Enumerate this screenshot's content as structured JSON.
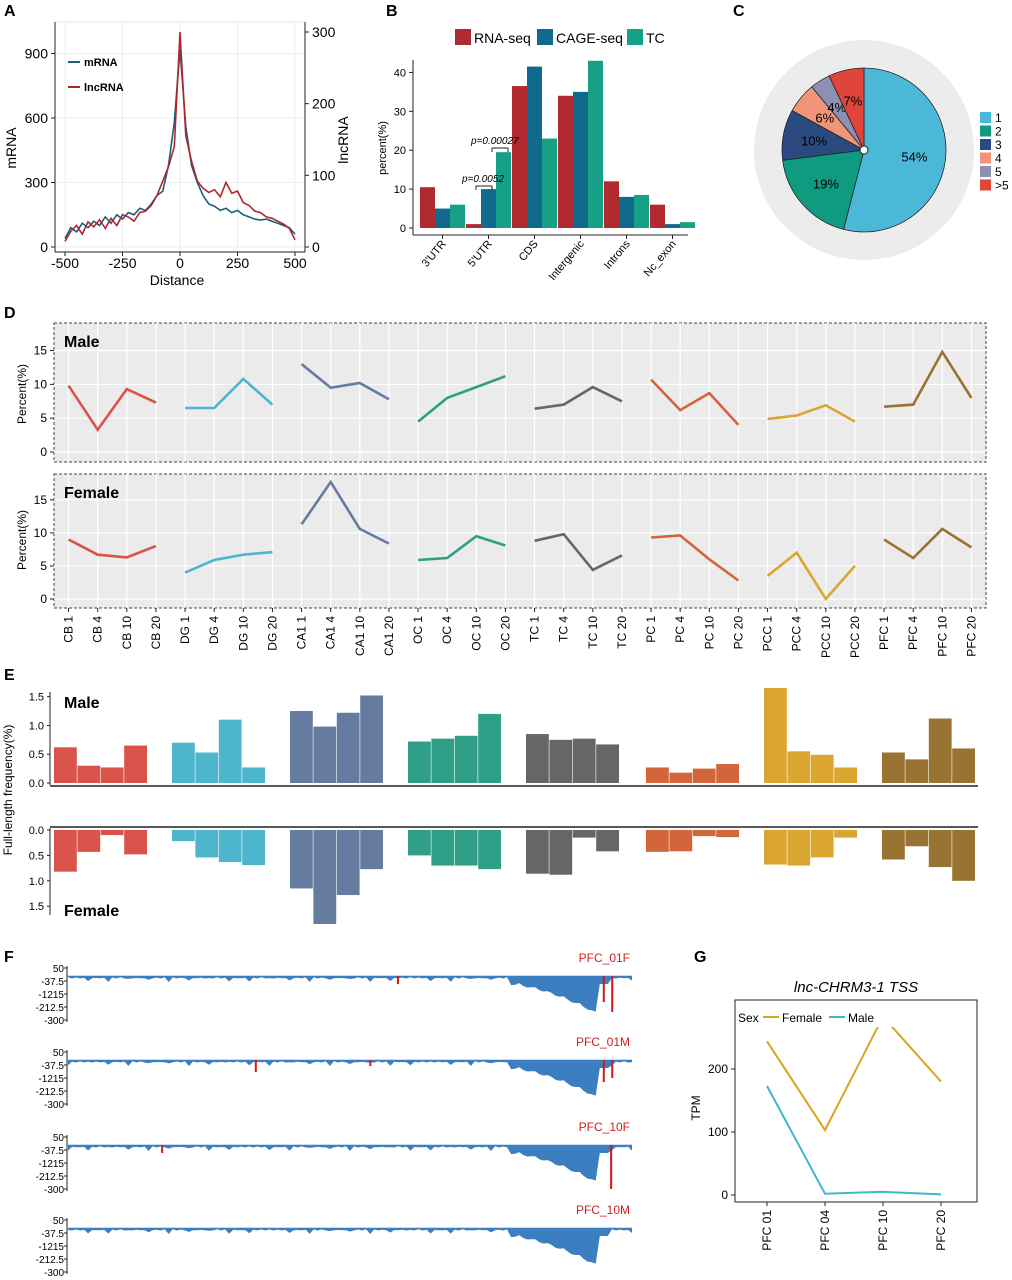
{
  "panel_letters": [
    "A",
    "B",
    "C",
    "D",
    "E",
    "F",
    "G"
  ],
  "tissues": [
    "CB",
    "DG",
    "CA1",
    "OC",
    "TC",
    "PC",
    "PCC",
    "PFC"
  ],
  "ages": [
    "1",
    "4",
    "10",
    "20"
  ],
  "tissue_colors": [
    "#d9534a",
    "#4db6cc",
    "#657ba0",
    "#2f9e86",
    "#666666",
    "#d2663a",
    "#dba532",
    "#987331"
  ],
  "tracks": [
    {
      "label": "PFC_01F",
      "blips": [
        [
          "0.585",
          8
        ],
        [
          "0.95",
          26
        ],
        [
          "0.965",
          36
        ]
      ]
    },
    {
      "label": "PFC_01M",
      "blips": [
        [
          "0.333",
          12
        ],
        [
          "0.536",
          6
        ],
        [
          "0.95",
          22
        ],
        [
          "0.965",
          18
        ]
      ]
    },
    {
      "label": "PFC_10F",
      "blips": [
        [
          "0.167",
          8
        ],
        [
          "0.963",
          44
        ]
      ]
    },
    {
      "label": "PFC_10M",
      "blips": []
    }
  ],
  "track_ticks": [
    "50",
    "-37.5",
    "-1215",
    "-212.5",
    "-300"
  ],
  "chart_data": [
    {
      "panel": "A",
      "type": "line",
      "xlabel": "Distance",
      "ylabel": "mRNA",
      "y2label": "lncRNA",
      "xlim": [
        -500,
        500
      ],
      "ylim": [
        0,
        1000
      ],
      "y2lim": [
        0,
        300
      ],
      "xticks": [
        "-500",
        "-250",
        "0",
        "250",
        "500"
      ],
      "yticks": [
        "0",
        "300",
        "600",
        "900"
      ],
      "y2ticks": [
        "0",
        "100",
        "200",
        "300"
      ],
      "x": [
        -500,
        -475,
        -450,
        -425,
        -400,
        -375,
        -350,
        -325,
        -300,
        -275,
        -250,
        -225,
        -200,
        -175,
        -150,
        -125,
        -100,
        -75,
        -50,
        -25,
        0,
        25,
        50,
        75,
        100,
        125,
        150,
        175,
        200,
        225,
        250,
        275,
        300,
        325,
        350,
        375,
        400,
        425,
        450,
        475,
        500
      ],
      "series": [
        {
          "name": "mRNA",
          "axis": "left",
          "color": "#1d5f7a",
          "values": [
            40,
            90,
            70,
            110,
            90,
            120,
            100,
            140,
            110,
            150,
            130,
            160,
            150,
            180,
            170,
            200,
            240,
            260,
            380,
            580,
            920,
            560,
            380,
            300,
            240,
            200,
            190,
            170,
            180,
            160,
            170,
            150,
            140,
            130,
            125,
            130,
            120,
            110,
            100,
            90,
            60
          ]
        },
        {
          "name": "lncRNA",
          "axis": "right",
          "color": "#b0262e",
          "values": [
            8,
            22,
            30,
            18,
            35,
            28,
            38,
            26,
            40,
            30,
            45,
            42,
            36,
            48,
            50,
            58,
            72,
            92,
            112,
            140,
            300,
            155,
            120,
            92,
            82,
            76,
            80,
            70,
            90,
            75,
            78,
            62,
            58,
            50,
            48,
            42,
            40,
            36,
            32,
            26,
            10
          ]
        }
      ]
    },
    {
      "panel": "B",
      "type": "bar",
      "ylabel": "percent(%)",
      "ylim": [
        0,
        45
      ],
      "yticks": [
        "0",
        "10",
        "20",
        "30",
        "40"
      ],
      "categories": [
        "3'UTR",
        "5'UTR",
        "CDS",
        "Intergenic",
        "Introns",
        "Nc_exon"
      ],
      "series": [
        {
          "name": "RNA-seq",
          "color": "#b02a30",
          "values": [
            10.5,
            1.0,
            36.5,
            34.0,
            12.0,
            6.0
          ]
        },
        {
          "name": "CAGE-seq",
          "color": "#106a8d",
          "values": [
            5.0,
            10.0,
            41.5,
            35.0,
            8.0,
            1.0
          ]
        },
        {
          "name": "TC",
          "color": "#16a085",
          "values": [
            6.0,
            19.5,
            23.0,
            43.0,
            8.5,
            1.5
          ]
        }
      ],
      "annotations": [
        "p=0.0052",
        "p=0.00027"
      ]
    },
    {
      "panel": "C",
      "type": "pie",
      "categories": [
        "1",
        "2",
        "3",
        "4",
        "5",
        ">5"
      ],
      "values": [
        54,
        19,
        10,
        6,
        4,
        7
      ],
      "labels": [
        "54%",
        "19%",
        "10%",
        "6%",
        "4%",
        "7%"
      ],
      "colors": [
        "#4bb8d8",
        "#0f9b7f",
        "#2b4a80",
        "#f0957a",
        "#8c90b3",
        "#e0453a"
      ]
    },
    {
      "panel": "D",
      "type": "line",
      "ylabel": "Percent(%)",
      "ylim": [
        0,
        18
      ],
      "yticks": [
        "0",
        "5",
        "10",
        "15"
      ],
      "categories": [
        "CB 1",
        "CB 4",
        "CB 10",
        "CB 20",
        "DG 1",
        "DG 4",
        "DG 10",
        "DG 20",
        "CA1 1",
        "CA1 4",
        "CA1 10",
        "CA1 20",
        "OC 1",
        "OC 4",
        "OC 10",
        "OC 20",
        "TC 1",
        "TC 4",
        "TC 10",
        "TC 20",
        "PC 1",
        "PC 4",
        "PC 10",
        "PC 20",
        "PCC 1",
        "PCC 4",
        "PCC 10",
        "PCC 20",
        "PFC 1",
        "PFC 4",
        "PFC 10",
        "PFC 20"
      ],
      "series": [
        {
          "name": "Male",
          "values": [
            9.8,
            3.3,
            9.3,
            7.3,
            6.5,
            6.5,
            10.8,
            7.0,
            13.0,
            9.5,
            10.2,
            7.8,
            4.5,
            8.0,
            9.6,
            11.2,
            6.4,
            7.0,
            9.6,
            7.5,
            10.7,
            6.2,
            8.7,
            4.0,
            4.9,
            5.4,
            6.9,
            4.5,
            6.7,
            7.0,
            14.8,
            8.0
          ]
        },
        {
          "name": "Female",
          "values": [
            9.0,
            6.7,
            6.3,
            8.0,
            4.0,
            5.9,
            6.7,
            7.1,
            11.3,
            17.7,
            10.6,
            8.4,
            5.9,
            6.2,
            9.5,
            8.1,
            8.8,
            9.8,
            4.4,
            6.6,
            9.3,
            9.6,
            6.0,
            2.8,
            3.5,
            7.0,
            0.0,
            5.0,
            9.0,
            6.2,
            10.6,
            7.8
          ]
        }
      ]
    },
    {
      "panel": "E",
      "type": "bar",
      "ylabel": "Full-length frequency(%)",
      "yticks": [
        "0.0",
        "0.5",
        "1.0",
        "1.5"
      ],
      "male_yticks": [
        "0.0",
        "0.5",
        "1.0",
        "1.5"
      ],
      "female_yticks": [
        "0.0",
        "0.5",
        "1.0",
        "1.5"
      ],
      "female_zero_label": "0.0",
      "categories": [
        "CB 1",
        "CB 4",
        "CB 10",
        "CB 20",
        "DG 1",
        "DG 4",
        "DG 10",
        "DG 20",
        "CA1 1",
        "CA1 4",
        "CA1 10",
        "CA1 20",
        "OC 1",
        "OC 4",
        "OC 10",
        "OC 20",
        "TC 1",
        "TC 4",
        "TC 10",
        "TC 20",
        "PC 1",
        "PC 4",
        "PC 10",
        "PC 20",
        "PCC 1",
        "PCC 4",
        "PCC 10",
        "PCC 20",
        "PFC 1",
        "PFC 4",
        "PFC 10",
        "PFC 20"
      ],
      "series": [
        {
          "name": "Male",
          "values": [
            0.62,
            0.3,
            0.27,
            0.65,
            0.7,
            0.53,
            1.1,
            0.27,
            1.25,
            0.98,
            1.22,
            1.52,
            0.72,
            0.77,
            0.82,
            1.2,
            0.85,
            0.75,
            0.77,
            0.67,
            0.27,
            0.18,
            0.25,
            0.33,
            1.65,
            0.55,
            0.49,
            0.27,
            0.53,
            0.41,
            1.12,
            0.6
          ]
        },
        {
          "name": "Female",
          "values": [
            0.82,
            0.43,
            0.1,
            0.48,
            0.22,
            0.54,
            0.63,
            0.69,
            1.15,
            1.85,
            1.28,
            0.77,
            0.5,
            0.7,
            0.7,
            0.77,
            0.86,
            0.88,
            0.15,
            0.42,
            0.43,
            0.42,
            0.12,
            0.14,
            0.68,
            0.7,
            0.54,
            0.15,
            0.58,
            0.32,
            0.73,
            1.0
          ]
        }
      ]
    },
    {
      "panel": "G",
      "type": "line",
      "title": "lnc-CHRM3-1 TSS",
      "ylabel": "TPM",
      "ylim": [
        0,
        300
      ],
      "yticks": [
        "0",
        "100",
        "200"
      ],
      "legend_title": "Sex",
      "categories": [
        "PFC 01",
        "PFC 04",
        "PFC 10",
        "PFC 20"
      ],
      "series": [
        {
          "name": "Female",
          "color": "#d7a520",
          "values": [
            244,
            103,
            283,
            180
          ]
        },
        {
          "name": "Male",
          "color": "#3fb8c8",
          "values": [
            173,
            2,
            5,
            1
          ]
        }
      ]
    }
  ]
}
